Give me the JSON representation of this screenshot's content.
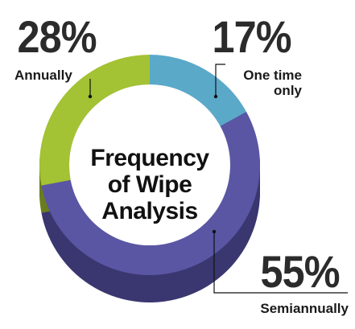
{
  "chart_data": {
    "type": "pie",
    "style": "3d-donut",
    "title": [
      "Frequency",
      "of Wipe",
      "Analysis"
    ],
    "slices": [
      {
        "label": "One time only",
        "label_lines": [
          "One time",
          "only"
        ],
        "value": 17,
        "value_label": "17%",
        "color": "#5aa9c9",
        "side_color": "#356f86"
      },
      {
        "label": "Semiannually",
        "label_lines": [
          "Semiannually"
        ],
        "value": 55,
        "value_label": "55%",
        "color": "#5a56a4",
        "side_color": "#3a3770"
      },
      {
        "label": "Annually",
        "label_lines": [
          "Annually"
        ],
        "value": 28,
        "value_label": "28%",
        "color": "#a3c234",
        "side_color": "#6a7d1e"
      }
    ]
  }
}
